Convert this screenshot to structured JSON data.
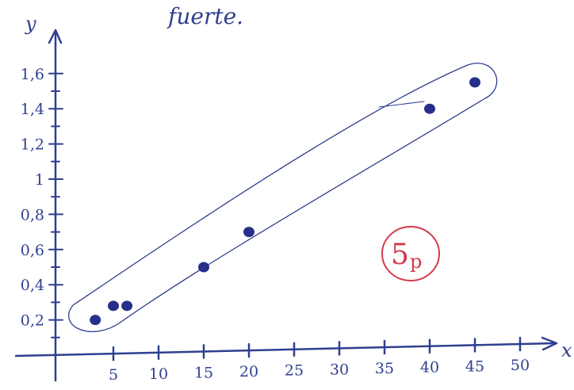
{
  "chart_data": {
    "type": "scatter",
    "title": "fuerte.",
    "xlabel": "x",
    "ylabel": "y",
    "xlim": [
      0,
      50
    ],
    "ylim": [
      0,
      1.6
    ],
    "x_ticks": [
      5,
      10,
      15,
      20,
      25,
      30,
      35,
      40,
      45,
      50
    ],
    "x_tick_labels": [
      "5",
      "10",
      "15",
      "20",
      "25",
      "30",
      "35",
      "40",
      "45",
      "50"
    ],
    "y_ticks": [
      0.2,
      0.4,
      0.6,
      0.8,
      1,
      1.2,
      1.4,
      1.6
    ],
    "y_tick_labels": [
      "0,2",
      "0,4",
      "0,6",
      "0,8",
      "1",
      "1,2",
      "1,4",
      "1,6"
    ],
    "grid": false,
    "series": [
      {
        "points": [
          {
            "x": 3,
            "y": 0.2
          },
          {
            "x": 5,
            "y": 0.28
          },
          {
            "x": 6.5,
            "y": 0.28
          },
          {
            "x": 15,
            "y": 0.5
          },
          {
            "x": 20,
            "y": 0.7
          },
          {
            "x": 40,
            "y": 1.4
          },
          {
            "x": 45,
            "y": 1.55
          }
        ]
      }
    ],
    "annotation": {
      "text_main": "5",
      "text_sub": "p",
      "color": "#d23a4a"
    },
    "ink_color": "#2f3f8f"
  }
}
